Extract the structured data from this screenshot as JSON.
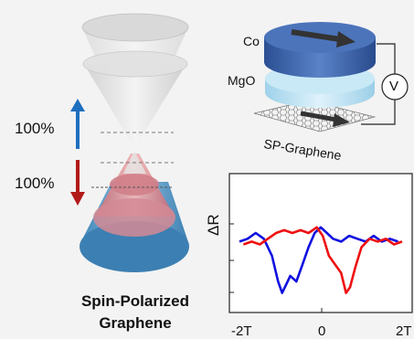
{
  "cone_labels": {
    "top_percent": "100%",
    "bottom_percent": "100%",
    "title_line1": "Spin-Polarized",
    "title_line2": "Graphene"
  },
  "device_labels": {
    "top_layer": "Co",
    "barrier": "MgO",
    "sheet": "SP-Graphene",
    "meter": "V"
  },
  "colors": {
    "spin_up_arrow": "#1f6fbf",
    "spin_down_arrow": "#b21a1a",
    "co_disk": "#3d66b0",
    "mgo_disk": "#bfe3f3",
    "trace_a": "#1010e0",
    "trace_b": "#ee1111"
  },
  "chart_data": {
    "type": "line",
    "title": "",
    "ylabel": "ΔR",
    "xlabel": "",
    "x_tick_labels": [
      "-2T",
      "0",
      "2T"
    ],
    "xlim": [
      -2,
      2
    ],
    "ylim": [
      -1,
      1
    ],
    "series": [
      {
        "color": "#1010e0",
        "x": [
          -2.0,
          -1.8,
          -1.6,
          -1.4,
          -1.2,
          -1.05,
          -0.95,
          -0.85,
          -0.75,
          -0.6,
          -0.45,
          -0.3,
          -0.15,
          0.0,
          0.15,
          0.3,
          0.5,
          0.7,
          0.9,
          1.1,
          1.3,
          1.5,
          1.7,
          1.9
        ],
        "y": [
          0.05,
          0.1,
          0.2,
          0.1,
          -0.2,
          -0.65,
          -0.85,
          -0.7,
          -0.55,
          -0.65,
          -0.35,
          -0.05,
          0.2,
          0.3,
          0.2,
          0.1,
          0.05,
          0.15,
          0.1,
          0.05,
          0.15,
          0.05,
          0.1,
          0.05
        ]
      },
      {
        "color": "#ee1111",
        "x": [
          -1.9,
          -1.7,
          -1.5,
          -1.3,
          -1.1,
          -0.9,
          -0.7,
          -0.5,
          -0.3,
          -0.1,
          0.05,
          0.2,
          0.35,
          0.5,
          0.62,
          0.72,
          0.85,
          1.0,
          1.2,
          1.4,
          1.6,
          1.8,
          2.0
        ],
        "y": [
          0.0,
          0.05,
          0.0,
          0.1,
          0.2,
          0.25,
          0.2,
          0.25,
          0.2,
          0.3,
          0.15,
          -0.2,
          -0.35,
          -0.5,
          -0.85,
          -0.75,
          -0.4,
          -0.05,
          0.1,
          0.05,
          0.1,
          0.0,
          0.05
        ]
      }
    ]
  }
}
